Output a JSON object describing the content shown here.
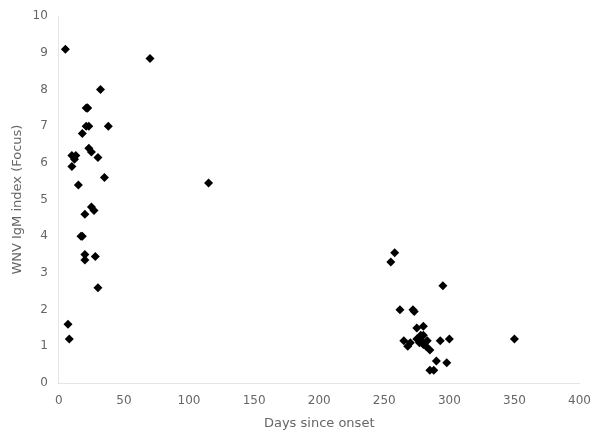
{
  "chart_data": {
    "type": "scatter",
    "x_label": "Days since onset",
    "y_label": "WNV IgM index (Focus)",
    "x": [
      5,
      7,
      8,
      10,
      10,
      12,
      13,
      15,
      17,
      18,
      18,
      20,
      20,
      20,
      21,
      21,
      22,
      22,
      23,
      23,
      25,
      25,
      27,
      28,
      30,
      30,
      32,
      35,
      38,
      70,
      115,
      255,
      258,
      262,
      265,
      268,
      270,
      272,
      273,
      275,
      275,
      277,
      278,
      278,
      280,
      280,
      280,
      282,
      283,
      285,
      285,
      288,
      290,
      293,
      295,
      298,
      300,
      350
    ],
    "values": [
      9.1,
      1.6,
      1.2,
      5.9,
      6.2,
      6.1,
      6.2,
      5.4,
      4.0,
      4.0,
      6.8,
      3.5,
      3.35,
      4.6,
      7.0,
      7.5,
      7.5,
      7.5,
      7.0,
      6.4,
      6.3,
      4.8,
      4.7,
      3.45,
      6.15,
      2.6,
      8.0,
      5.6,
      7.0,
      8.85,
      5.45,
      3.3,
      3.55,
      2.0,
      1.15,
      1.0,
      1.1,
      2.0,
      1.95,
      1.2,
      1.5,
      1.1,
      1.3,
      1.15,
      1.05,
      1.3,
      1.55,
      1.0,
      1.15,
      0.9,
      0.35,
      0.35,
      0.6,
      1.15,
      2.65,
      0.55,
      1.2,
      1.2
    ],
    "color": "#000000",
    "marker": "diamond",
    "xlim": [
      0,
      400
    ],
    "ylim": [
      0,
      10
    ],
    "xticks": [
      0,
      50,
      100,
      150,
      200,
      250,
      300,
      350,
      400
    ],
    "yticks": [
      0,
      1,
      2,
      3,
      4,
      5,
      6,
      7,
      8,
      9,
      10
    ],
    "grid": false
  }
}
